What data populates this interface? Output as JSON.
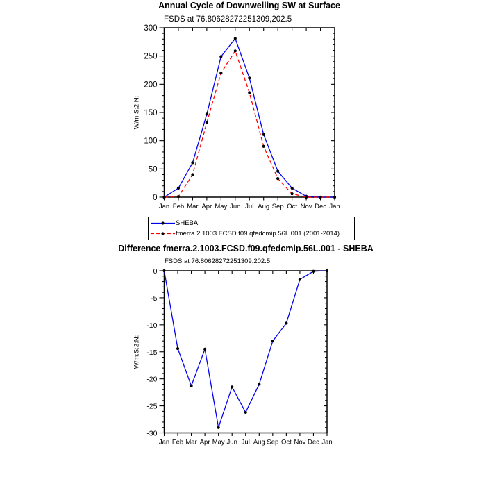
{
  "figure": {
    "background": "#ffffff",
    "text_color": "#000000",
    "axis_color": "#000000"
  },
  "chart_data": [
    {
      "type": "line",
      "title": "Annual Cycle of Downwelling SW at Surface",
      "subtitle": "FSDS at 76.80628272251309,202.5",
      "ylabel": "W/m:S:2:N:",
      "xlabel": "",
      "categories": [
        "Jan",
        "Feb",
        "Mar",
        "Apr",
        "May",
        "Jun",
        "Jul",
        "Aug",
        "Sep",
        "Oct",
        "Nov",
        "Dec",
        "Jan"
      ],
      "ylim": [
        0,
        300
      ],
      "ytick_step": 50,
      "ytick_minor_step": 10,
      "grid": false,
      "legend_position": "below-left-boxed",
      "series": [
        {
          "name": "SHEBA",
          "color": "#0000ee",
          "line_style": "solid",
          "marker": "filled-circle",
          "marker_color": "#000000",
          "values": [
            0,
            16,
            61,
            147,
            249,
            281,
            211,
            111,
            46,
            16,
            1.5,
            0,
            0
          ]
        },
        {
          "name": "fmerra.2.1003.FCSD.f09.qfedcmip.56L.001 (2001-2014)",
          "color": "#ff0000",
          "line_style": "dashed",
          "marker": "filled-circle",
          "marker_color": "#000000",
          "values": [
            0,
            1,
            40,
            132,
            220,
            259,
            185,
            90,
            33,
            6,
            0,
            0,
            0
          ]
        }
      ]
    },
    {
      "type": "line",
      "title": "Difference fmerra.2.1003.FCSD.f09.qfedcmip.56L.001 - SHEBA",
      "subtitle": "FSDS at 76.80628272251309,202.5",
      "ylabel": "W/m:S:2:N:",
      "xlabel": "",
      "categories": [
        "Jan",
        "Feb",
        "Mar",
        "Apr",
        "May",
        "Jun",
        "Jul",
        "Aug",
        "Sep",
        "Oct",
        "Nov",
        "Dec",
        "Jan"
      ],
      "ylim": [
        -30,
        0
      ],
      "ytick_step": 5,
      "ytick_minor_step": 1,
      "grid": false,
      "legend_position": "none",
      "series": [
        {
          "color": "#0000ee",
          "line_style": "solid",
          "marker": "filled-circle",
          "marker_color": "#000000",
          "values": [
            0,
            -14.4,
            -21.3,
            -14.5,
            -29,
            -21.5,
            -26.2,
            -21,
            -13,
            -9.7,
            -1.6,
            -0.1,
            0
          ]
        }
      ]
    }
  ]
}
